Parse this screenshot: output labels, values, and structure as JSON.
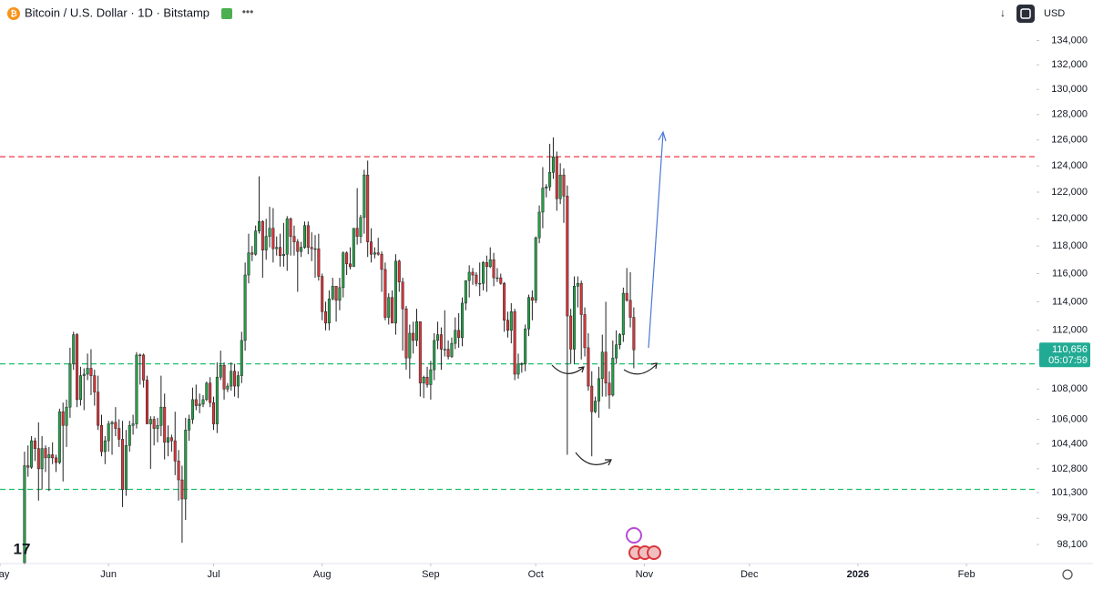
{
  "header": {
    "symbol": "Bitcoin / U.S. Dollar · 1D · Bitstamp",
    "currency": "USD"
  },
  "chart_data": {
    "type": "candlestick",
    "log_scale": true,
    "grid": false,
    "up_color": "#26a04a",
    "down_color": "#d9353a",
    "wick_color": "#222222",
    "xlim": [
      -7,
      289
    ],
    "ylim": [
      97000,
      137400
    ],
    "xticks": [
      {
        "value": -7,
        "label": "May"
      },
      {
        "value": 24,
        "label": "Jun"
      },
      {
        "value": 54,
        "label": "Jul"
      },
      {
        "value": 85,
        "label": "Aug"
      },
      {
        "value": 116,
        "label": "Sep"
      },
      {
        "value": 146,
        "label": "Oct"
      },
      {
        "value": 177,
        "label": "Nov"
      },
      {
        "value": 207,
        "label": "Dec"
      },
      {
        "value": 238,
        "label": "2026"
      },
      {
        "value": 269,
        "label": "Feb"
      }
    ],
    "yticks": [
      {
        "value": 134000,
        "label": "134,000"
      },
      {
        "value": 132000,
        "label": "132,000"
      },
      {
        "value": 130000,
        "label": "130,000"
      },
      {
        "value": 128000,
        "label": "128,000"
      },
      {
        "value": 126000,
        "label": "126,000"
      },
      {
        "value": 124000,
        "label": "124,000"
      },
      {
        "value": 122000,
        "label": "122,000"
      },
      {
        "value": 120000,
        "label": "120,000"
      },
      {
        "value": 118000,
        "label": "118,000"
      },
      {
        "value": 116000,
        "label": "116,000"
      },
      {
        "value": 114000,
        "label": "114,000"
      },
      {
        "value": 112000,
        "label": "112,000"
      },
      {
        "value": 108000,
        "label": "108,000"
      },
      {
        "value": 106000,
        "label": "106,000"
      },
      {
        "value": 104400,
        "label": "104,400"
      },
      {
        "value": 102800,
        "label": "102,800"
      },
      {
        "value": 101300,
        "label": "101,300"
      },
      {
        "value": 99700,
        "label": "99,700"
      },
      {
        "value": 98100,
        "label": "98,100"
      }
    ],
    "last_price": {
      "value": 110656,
      "label": "110,656",
      "countdown": "05:07:59",
      "color": "#22ab94"
    },
    "horizontal_lines": [
      {
        "value": 124700,
        "color": "#f23645"
      },
      {
        "value": 109700,
        "color": "#1fbf6a"
      },
      {
        "value": 101500,
        "color": "#1fbf6a"
      }
    ],
    "ohlc": [
      [
        97000,
        103900,
        96900,
        103000
      ],
      [
        103000,
        104300,
        102300,
        102900
      ],
      [
        102900,
        104900,
        102800,
        104600
      ],
      [
        104600,
        104800,
        103300,
        104100
      ],
      [
        104100,
        105800,
        100800,
        102800
      ],
      [
        102800,
        104900,
        101500,
        104100
      ],
      [
        104100,
        104300,
        102600,
        103500
      ],
      [
        103500,
        104200,
        101400,
        103700
      ],
      [
        103700,
        104500,
        103100,
        103500
      ],
      [
        103500,
        103700,
        102600,
        103200
      ],
      [
        103200,
        106700,
        103100,
        106500
      ],
      [
        106500,
        107100,
        102000,
        105600
      ],
      [
        105600,
        107300,
        104200,
        106800
      ],
      [
        106800,
        110800,
        106100,
        109700
      ],
      [
        109700,
        111900,
        109300,
        111700
      ],
      [
        111700,
        111800,
        106800,
        107300
      ],
      [
        107300,
        109500,
        106900,
        108900
      ],
      [
        108900,
        109400,
        106600,
        109000
      ],
      [
        109000,
        110400,
        108600,
        109400
      ],
      [
        109400,
        110700,
        107600,
        108900
      ],
      [
        108900,
        109300,
        106900,
        107800
      ],
      [
        107800,
        108900,
        105300,
        105600
      ],
      [
        105600,
        106300,
        103600,
        103900
      ],
      [
        103900,
        104900,
        103100,
        104600
      ],
      [
        104600,
        105900,
        103900,
        105700
      ],
      [
        105700,
        105900,
        103700,
        105800
      ],
      [
        105800,
        106800,
        104900,
        105400
      ],
      [
        105400,
        106000,
        104200,
        104700
      ],
      [
        104700,
        105900,
        100400,
        101500
      ],
      [
        101500,
        105300,
        101100,
        104300
      ],
      [
        104300,
        105900,
        103900,
        105600
      ],
      [
        105600,
        106300,
        105000,
        105700
      ],
      [
        105700,
        110500,
        105400,
        110300
      ],
      [
        110300,
        110400,
        108300,
        110300
      ],
      [
        110300,
        110400,
        108100,
        108600
      ],
      [
        108600,
        108900,
        105700,
        105700
      ],
      [
        105700,
        106200,
        102800,
        106000
      ],
      [
        106000,
        106200,
        104300,
        105400
      ],
      [
        105400,
        106100,
        104500,
        105600
      ],
      [
        105600,
        108900,
        104900,
        106800
      ],
      [
        106800,
        107700,
        103400,
        104500
      ],
      [
        104500,
        105600,
        103600,
        104800
      ],
      [
        104800,
        105000,
        103900,
        104600
      ],
      [
        104600,
        106500,
        102400,
        103300
      ],
      [
        103300,
        104000,
        100800,
        102100
      ],
      [
        102100,
        103000,
        98200,
        100900
      ],
      [
        100900,
        106100,
        99600,
        105300
      ],
      [
        105300,
        106300,
        104600,
        106000
      ],
      [
        106000,
        108100,
        105700,
        107300
      ],
      [
        107300,
        108300,
        106600,
        106900
      ],
      [
        106900,
        107700,
        106400,
        107000
      ],
      [
        107000,
        107600,
        106800,
        107300
      ],
      [
        107300,
        108500,
        107200,
        108400
      ],
      [
        108400,
        108800,
        106800,
        107100
      ],
      [
        107100,
        107500,
        105300,
        105700
      ],
      [
        105700,
        109800,
        105100,
        108800
      ],
      [
        108800,
        110600,
        108600,
        109600
      ],
      [
        109600,
        109800,
        107300,
        108000
      ],
      [
        108000,
        108400,
        107800,
        108200
      ],
      [
        108200,
        109800,
        107900,
        109200
      ],
      [
        109200,
        109700,
        107500,
        108200
      ],
      [
        108200,
        109200,
        107400,
        108900
      ],
      [
        108900,
        111900,
        108400,
        111300
      ],
      [
        111300,
        116800,
        110600,
        115900
      ],
      [
        115900,
        118900,
        115300,
        117500
      ],
      [
        117500,
        118000,
        116900,
        117400
      ],
      [
        117400,
        119500,
        117300,
        119100
      ],
      [
        119100,
        123200,
        118900,
        119800
      ],
      [
        119800,
        119900,
        115700,
        117700
      ],
      [
        117700,
        120000,
        117000,
        118700
      ],
      [
        118700,
        120900,
        117900,
        119300
      ],
      [
        119300,
        120800,
        116800,
        117800
      ],
      [
        117800,
        118700,
        117300,
        117900
      ],
      [
        117900,
        118900,
        116500,
        117300
      ],
      [
        117300,
        119700,
        116500,
        117400
      ],
      [
        117400,
        120200,
        116200,
        120000
      ],
      [
        120000,
        120100,
        117300,
        118700
      ],
      [
        118700,
        119500,
        117300,
        118300
      ],
      [
        118300,
        118500,
        114700,
        117600
      ],
      [
        117600,
        118300,
        117200,
        117900
      ],
      [
        117900,
        119800,
        117800,
        119500
      ],
      [
        119500,
        119800,
        117400,
        117900
      ],
      [
        117900,
        119000,
        116900,
        117800
      ],
      [
        117800,
        118800,
        115700,
        117800
      ],
      [
        117800,
        118900,
        115500,
        115800
      ],
      [
        115800,
        116000,
        112700,
        113300
      ],
      [
        113300,
        114000,
        112000,
        112500
      ],
      [
        112500,
        114800,
        112000,
        114200
      ],
      [
        114200,
        115700,
        114100,
        115100
      ],
      [
        115100,
        115100,
        112600,
        114100
      ],
      [
        114100,
        115700,
        113400,
        115000
      ],
      [
        115000,
        117600,
        114300,
        117500
      ],
      [
        117500,
        117600,
        115900,
        116700
      ],
      [
        116700,
        117900,
        116300,
        116500
      ],
      [
        116500,
        119300,
        116500,
        119300
      ],
      [
        119300,
        122300,
        118100,
        118700
      ],
      [
        118700,
        120300,
        118200,
        120100
      ],
      [
        120100,
        123700,
        118900,
        123300
      ],
      [
        123300,
        124400,
        117200,
        118300
      ],
      [
        118300,
        119300,
        116800,
        117400
      ],
      [
        117400,
        117900,
        117100,
        117500
      ],
      [
        117500,
        118600,
        117300,
        117400
      ],
      [
        117400,
        117600,
        114700,
        116300
      ],
      [
        116300,
        116800,
        112700,
        112900
      ],
      [
        112900,
        114600,
        112400,
        114300
      ],
      [
        114300,
        114800,
        112600,
        112500
      ],
      [
        112500,
        117400,
        111700,
        116900
      ],
      [
        116900,
        117000,
        114700,
        115400
      ],
      [
        115400,
        115700,
        110600,
        113500
      ],
      [
        113500,
        113700,
        109300,
        110100
      ],
      [
        110100,
        112400,
        108700,
        111800
      ],
      [
        111800,
        112600,
        110400,
        111300
      ],
      [
        111300,
        113500,
        110900,
        112600
      ],
      [
        112600,
        112600,
        107500,
        108400
      ],
      [
        108400,
        108900,
        107400,
        108800
      ],
      [
        108800,
        109500,
        108100,
        108300
      ],
      [
        108300,
        109900,
        107300,
        109300
      ],
      [
        109300,
        111800,
        108600,
        111300
      ],
      [
        111300,
        112600,
        110700,
        111700
      ],
      [
        111700,
        112200,
        109300,
        110700
      ],
      [
        110700,
        113400,
        110200,
        110700
      ],
      [
        110700,
        111300,
        110000,
        110200
      ],
      [
        110200,
        111500,
        110100,
        111100
      ],
      [
        111100,
        112900,
        110700,
        112000
      ],
      [
        112000,
        113200,
        110800,
        111500
      ],
      [
        111500,
        114300,
        110900,
        113900
      ],
      [
        113900,
        115500,
        113400,
        115500
      ],
      [
        115500,
        116600,
        114300,
        116100
      ],
      [
        116100,
        116400,
        115200,
        115900
      ],
      [
        115900,
        116100,
        115100,
        115300
      ],
      [
        115300,
        116800,
        114400,
        115300
      ],
      [
        115300,
        116900,
        114800,
        116800
      ],
      [
        116800,
        117300,
        114700,
        116500
      ],
      [
        116500,
        117900,
        116400,
        117000
      ],
      [
        117000,
        117500,
        115100,
        115700
      ],
      [
        115700,
        116400,
        115400,
        115700
      ],
      [
        115700,
        116000,
        115200,
        115300
      ],
      [
        115300,
        115400,
        111900,
        112700
      ],
      [
        112700,
        113300,
        111500,
        112000
      ],
      [
        112000,
        113900,
        111100,
        113300
      ],
      [
        113300,
        113500,
        108600,
        109000
      ],
      [
        109000,
        110400,
        108700,
        109700
      ],
      [
        109700,
        109800,
        109100,
        109700
      ],
      [
        109700,
        112400,
        109200,
        112100
      ],
      [
        112100,
        114500,
        111600,
        114300
      ],
      [
        114300,
        114800,
        112700,
        114100
      ],
      [
        114100,
        118700,
        113900,
        118600
      ],
      [
        118600,
        121000,
        118200,
        120500
      ],
      [
        120500,
        123900,
        119300,
        122300
      ],
      [
        122300,
        122600,
        121600,
        122400
      ],
      [
        122400,
        125700,
        122100,
        123500
      ],
      [
        123500,
        126200,
        123000,
        124700
      ],
      [
        124700,
        125100,
        120600,
        121500
      ],
      [
        121500,
        124200,
        121100,
        123300
      ],
      [
        123300,
        123800,
        119700,
        121700
      ],
      [
        121700,
        122500,
        103700,
        113000
      ],
      [
        113000,
        113500,
        109700,
        110700
      ],
      [
        110700,
        115800,
        109700,
        115100
      ],
      [
        115100,
        115800,
        113600,
        115300
      ],
      [
        115300,
        115500,
        110000,
        113100
      ],
      [
        113100,
        113600,
        110200,
        110800
      ],
      [
        110800,
        111800,
        107900,
        108200
      ],
      [
        108200,
        109200,
        103600,
        106500
      ],
      [
        106500,
        107500,
        106400,
        107200
      ],
      [
        107200,
        109500,
        106100,
        108700
      ],
      [
        108700,
        111700,
        107500,
        110500
      ],
      [
        110500,
        114000,
        107500,
        108400
      ],
      [
        108400,
        109200,
        106700,
        107600
      ],
      [
        107600,
        111300,
        107500,
        110100
      ],
      [
        110100,
        112000,
        109700,
        111000
      ],
      [
        111000,
        111800,
        110700,
        111700
      ],
      [
        111700,
        115000,
        111200,
        114600
      ],
      [
        114600,
        116400,
        114000,
        114100
      ],
      [
        114100,
        116100,
        112200,
        112900
      ],
      [
        112900,
        113600,
        109400,
        110656
      ]
    ]
  }
}
